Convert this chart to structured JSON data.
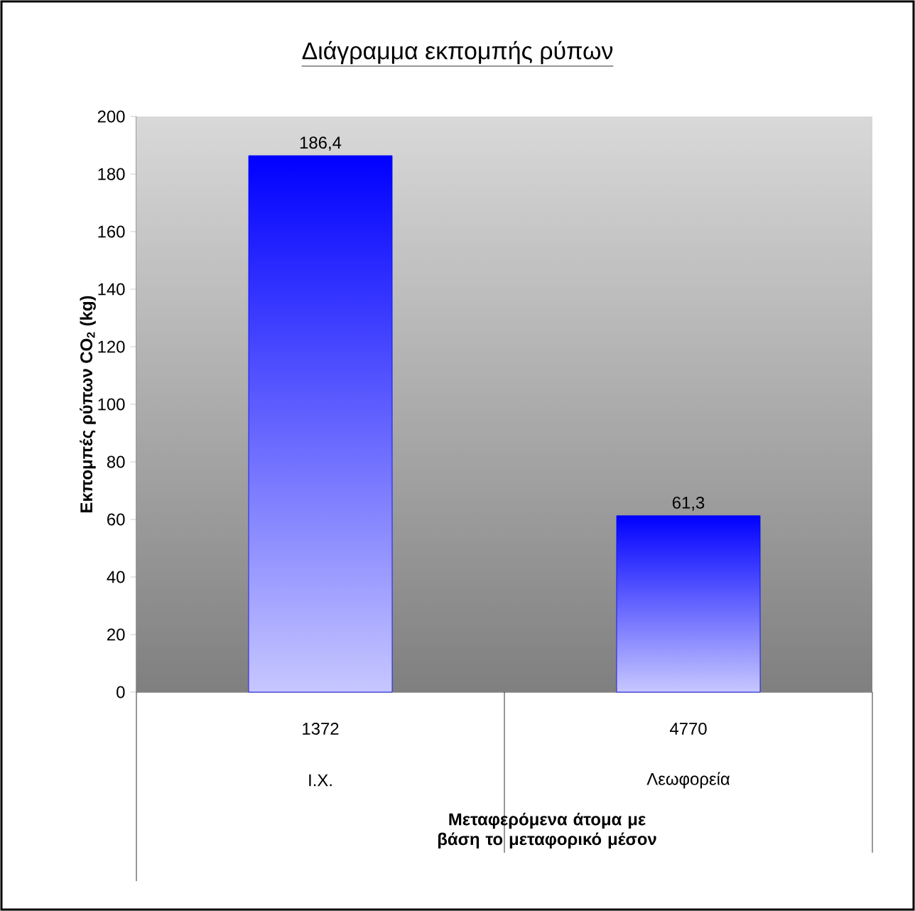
{
  "chart_data": {
    "type": "bar",
    "title": "Διάγραμμα εκπομπής ρύπων",
    "xlabel": "Μεταφερόμενα άτομα με βάση το μεταφορικό μέσον",
    "ylabel": "Εκπομπές ρύπων CO$_{2}$ (kg)",
    "categories": [
      "1372",
      "4770"
    ],
    "annotations": [
      "Ι.Χ.",
      "Λεωφορεία"
    ],
    "values": [
      186.4,
      61.3
    ],
    "value_labels": [
      "186,4",
      "61,3"
    ],
    "color": "#0000ff",
    "ylim": [
      0,
      200
    ],
    "yticks": [
      0,
      20,
      40,
      60,
      80,
      100,
      120,
      140,
      160,
      180,
      200
    ]
  }
}
